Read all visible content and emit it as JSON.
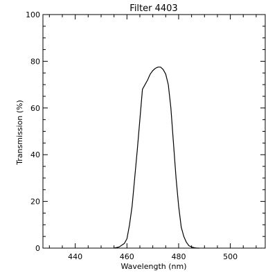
{
  "chart_data": {
    "type": "line",
    "title": "Filter 4403",
    "xlabel": "Wavelength (nm)",
    "ylabel": "Transmission (%)",
    "xlim": [
      427.5,
      513.5
    ],
    "ylim": [
      0,
      100
    ],
    "x_ticks": [
      440,
      460,
      480,
      500
    ],
    "x_tick_labels": [
      "440",
      "460",
      "480",
      "500"
    ],
    "x_minor_step": 5,
    "y_ticks": [
      0,
      20,
      40,
      60,
      80,
      100
    ],
    "y_tick_labels": [
      "0",
      "20",
      "40",
      "60",
      "80",
      "100"
    ],
    "y_minor_step": 5,
    "grid": false,
    "line_color": "#000000",
    "series": [
      {
        "x": [
          455,
          457,
          459,
          460,
          461,
          462,
          463,
          464,
          465,
          466,
          467,
          468,
          469,
          470,
          471,
          472,
          473,
          474,
          475,
          476,
          477,
          478,
          479,
          480,
          481,
          482,
          483,
          484,
          485,
          486,
          487,
          488
        ],
        "y": [
          0,
          0.5,
          2,
          4,
          10,
          18,
          30,
          42,
          55,
          68,
          70,
          72,
          74.5,
          76,
          77,
          77.5,
          77.5,
          76.5,
          74.5,
          70,
          60,
          45,
          30,
          18,
          9,
          5,
          2.5,
          1,
          0.5,
          0.2,
          0,
          0
        ]
      }
    ]
  }
}
